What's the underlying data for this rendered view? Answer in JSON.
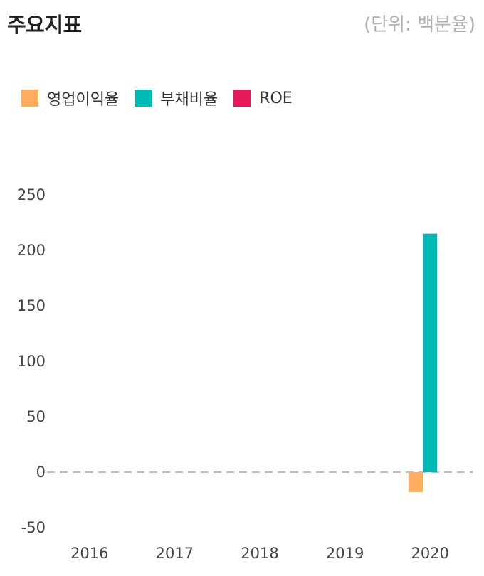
{
  "header": {
    "title": "주요지표",
    "unit": "(단위: 백분율)"
  },
  "legend": [
    {
      "label": "영업이익율",
      "color": "#FFAE5F"
    },
    {
      "label": "부채비율",
      "color": "#00BBB5"
    },
    {
      "label": "ROE",
      "color": "#E8185A"
    }
  ],
  "chart_data": {
    "type": "bar",
    "categories": [
      "2016",
      "2017",
      "2018",
      "2019",
      "2020"
    ],
    "series": [
      {
        "name": "영업이익율",
        "color": "#FFAE5F",
        "values": [
          null,
          null,
          null,
          null,
          -18
        ]
      },
      {
        "name": "부채비율",
        "color": "#00BBB5",
        "values": [
          null,
          null,
          null,
          null,
          215
        ]
      },
      {
        "name": "ROE",
        "color": "#E8185A",
        "values": [
          null,
          null,
          null,
          null,
          null
        ]
      }
    ],
    "ylim": [
      -50,
      250
    ],
    "yticks": [
      250,
      200,
      150,
      100,
      50,
      0,
      -50
    ],
    "zero_line": "dashed",
    "grid": false,
    "legend_position": "top-left"
  }
}
